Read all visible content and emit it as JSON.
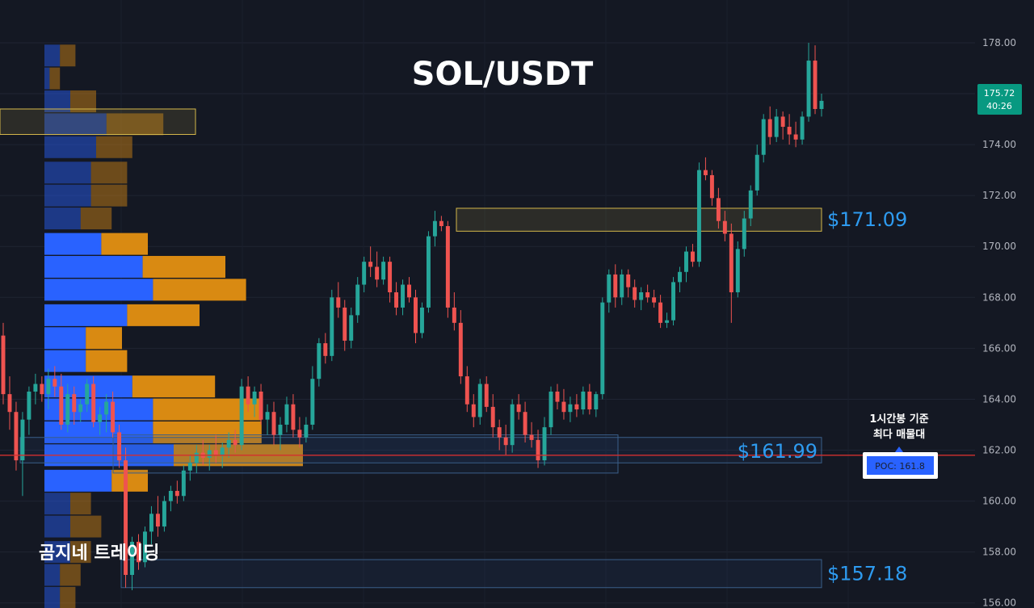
{
  "chart_data": {
    "type": "candlestick",
    "title": "SOL/USDT",
    "y_ticks": [
      "178.00",
      "176.00",
      "174.00",
      "172.00",
      "170.00",
      "168.00",
      "166.00",
      "164.00",
      "162.00",
      "160.00",
      "158.00",
      "156.00"
    ],
    "ylim": [
      155.8,
      179.3
    ],
    "grid": true,
    "current_price": "175.72",
    "countdown": "40:26",
    "poc": {
      "label": "POC: 161.8",
      "value": 161.8
    },
    "levels": [
      {
        "label": "$171.09",
        "value": 171.09,
        "zone": [
          170.6,
          171.5
        ],
        "color": "#d4b84a"
      },
      {
        "label": "$161.99",
        "value": 161.99,
        "zone": [
          161.5,
          162.5
        ],
        "color": "#3a5f8a"
      },
      {
        "label": "$157.18",
        "value": 157.18,
        "zone": [
          156.6,
          157.7
        ],
        "color": "#3a5f8a"
      }
    ],
    "annotation": [
      "1시간봉 기준",
      "최다 매물대"
    ],
    "watermark": "곰지네 트레이딩",
    "colors": {
      "up": "#26a69a",
      "down": "#ef5350",
      "poc_line": "#d32f2f",
      "vol_up": "#2962ff",
      "vol_down": "#d98a12"
    },
    "volume_profile": [
      {
        "price": 177.5,
        "up": 0.6,
        "down": 0.6
      },
      {
        "price": 176.6,
        "up": 0.2,
        "down": 0.4
      },
      {
        "price": 175.7,
        "up": 1.0,
        "down": 1.0
      },
      {
        "price": 174.8,
        "up": 2.4,
        "down": 2.2
      },
      {
        "price": 173.9,
        "up": 2.0,
        "down": 1.4
      },
      {
        "price": 172.9,
        "up": 1.8,
        "down": 1.4
      },
      {
        "price": 172.0,
        "up": 1.8,
        "down": 1.4
      },
      {
        "price": 171.1,
        "up": 1.4,
        "down": 1.2
      },
      {
        "price": 170.1,
        "up": 2.2,
        "down": 1.8
      },
      {
        "price": 169.2,
        "up": 3.8,
        "down": 3.2
      },
      {
        "price": 168.3,
        "up": 4.2,
        "down": 3.6
      },
      {
        "price": 167.3,
        "up": 3.2,
        "down": 2.8
      },
      {
        "price": 166.4,
        "up": 1.6,
        "down": 1.4
      },
      {
        "price": 165.5,
        "up": 1.6,
        "down": 1.6
      },
      {
        "price": 164.5,
        "up": 3.4,
        "down": 3.2
      },
      {
        "price": 163.6,
        "up": 4.2,
        "down": 4.2
      },
      {
        "price": 162.7,
        "up": 4.2,
        "down": 4.2
      },
      {
        "price": 161.8,
        "up": 5.0,
        "down": 5.0
      },
      {
        "price": 160.8,
        "up": 2.6,
        "down": 1.4
      },
      {
        "price": 159.9,
        "up": 1.0,
        "down": 0.8
      },
      {
        "price": 159.0,
        "up": 1.0,
        "down": 1.2
      },
      {
        "price": 158.0,
        "up": 1.0,
        "down": 0.8
      },
      {
        "price": 157.1,
        "up": 0.6,
        "down": 0.8
      },
      {
        "price": 156.2,
        "up": 0.6,
        "down": 0.6
      }
    ],
    "candles": [
      [
        166.5,
        167.0,
        163.8,
        164.2
      ],
      [
        164.2,
        164.9,
        162.8,
        163.5
      ],
      [
        163.5,
        163.9,
        161.2,
        161.6
      ],
      [
        161.6,
        163.5,
        160.2,
        163.2
      ],
      [
        163.2,
        164.5,
        162.6,
        164.3
      ],
      [
        164.3,
        165.0,
        163.8,
        164.6
      ],
      [
        164.6,
        164.9,
        163.9,
        164.2
      ],
      [
        164.2,
        165.2,
        163.6,
        164.8
      ],
      [
        164.8,
        165.3,
        164.1,
        164.5
      ],
      [
        164.5,
        165.0,
        162.8,
        163.0
      ],
      [
        163.0,
        164.6,
        162.7,
        164.2
      ],
      [
        164.2,
        164.5,
        163.0,
        163.5
      ],
      [
        163.5,
        164.0,
        163.1,
        163.8
      ],
      [
        163.8,
        164.8,
        163.5,
        164.6
      ],
      [
        164.6,
        164.9,
        162.9,
        163.1
      ],
      [
        163.1,
        163.7,
        162.6,
        163.4
      ],
      [
        163.4,
        164.2,
        162.7,
        163.9
      ],
      [
        163.9,
        164.3,
        162.5,
        162.7
      ],
      [
        162.7,
        163.0,
        161.3,
        161.6
      ],
      [
        161.6,
        162.1,
        156.6,
        157.1
      ],
      [
        157.1,
        158.6,
        156.5,
        158.4
      ],
      [
        158.4,
        158.7,
        157.3,
        157.6
      ],
      [
        157.6,
        159.0,
        157.4,
        158.8
      ],
      [
        158.8,
        159.8,
        158.3,
        159.5
      ],
      [
        159.5,
        160.2,
        158.6,
        159.0
      ],
      [
        159.0,
        160.2,
        158.8,
        160.0
      ],
      [
        160.0,
        160.6,
        159.6,
        160.4
      ],
      [
        160.4,
        160.8,
        159.9,
        160.2
      ],
      [
        160.2,
        161.4,
        160.0,
        161.2
      ],
      [
        161.2,
        161.8,
        160.8,
        161.5
      ],
      [
        161.5,
        162.2,
        161.1,
        161.9
      ],
      [
        161.9,
        162.4,
        161.4,
        161.7
      ],
      [
        161.7,
        162.2,
        161.2,
        162.0
      ],
      [
        162.0,
        162.6,
        161.5,
        161.8
      ],
      [
        161.8,
        162.3,
        161.3,
        162.1
      ],
      [
        162.1,
        162.7,
        161.7,
        162.4
      ],
      [
        162.4,
        162.8,
        161.9,
        162.2
      ],
      [
        162.2,
        164.8,
        162.0,
        164.5
      ],
      [
        164.5,
        164.9,
        163.5,
        163.8
      ],
      [
        163.8,
        164.5,
        163.3,
        164.3
      ],
      [
        164.3,
        164.6,
        163.0,
        163.2
      ],
      [
        163.2,
        163.8,
        162.6,
        163.5
      ],
      [
        163.5,
        163.9,
        162.2,
        162.6
      ],
      [
        162.6,
        163.3,
        162.0,
        163.0
      ],
      [
        163.0,
        164.1,
        162.7,
        163.8
      ],
      [
        163.8,
        164.2,
        162.5,
        162.8
      ],
      [
        162.8,
        163.3,
        162.1,
        162.5
      ],
      [
        162.5,
        163.3,
        162.3,
        163.0
      ],
      [
        163.0,
        165.3,
        162.8,
        164.8
      ],
      [
        164.8,
        166.4,
        164.5,
        166.2
      ],
      [
        166.2,
        166.6,
        165.4,
        165.7
      ],
      [
        165.7,
        168.3,
        165.5,
        168.0
      ],
      [
        168.0,
        168.6,
        167.2,
        167.6
      ],
      [
        167.6,
        167.9,
        165.9,
        166.3
      ],
      [
        166.3,
        167.6,
        166.0,
        167.3
      ],
      [
        167.3,
        168.8,
        167.0,
        168.5
      ],
      [
        168.5,
        169.6,
        168.2,
        169.4
      ],
      [
        169.4,
        170.0,
        168.8,
        169.2
      ],
      [
        169.2,
        169.8,
        168.4,
        168.7
      ],
      [
        168.7,
        169.6,
        168.5,
        169.4
      ],
      [
        169.4,
        169.6,
        167.8,
        168.2
      ],
      [
        168.2,
        168.6,
        167.3,
        167.6
      ],
      [
        167.6,
        168.7,
        167.3,
        168.5
      ],
      [
        168.5,
        168.8,
        167.8,
        168.0
      ],
      [
        168.0,
        168.3,
        166.2,
        166.6
      ],
      [
        166.6,
        167.8,
        166.4,
        167.6
      ],
      [
        167.6,
        170.6,
        167.4,
        170.4
      ],
      [
        170.4,
        171.4,
        170.0,
        171.0
      ],
      [
        171.0,
        171.2,
        170.6,
        170.8
      ],
      [
        170.8,
        171.0,
        167.2,
        167.6
      ],
      [
        167.6,
        168.2,
        166.7,
        167.0
      ],
      [
        167.0,
        167.5,
        164.6,
        164.9
      ],
      [
        164.9,
        165.3,
        163.5,
        163.8
      ],
      [
        163.8,
        164.2,
        162.9,
        163.3
      ],
      [
        163.3,
        164.8,
        163.0,
        164.6
      ],
      [
        164.6,
        164.9,
        163.5,
        163.7
      ],
      [
        163.7,
        164.2,
        162.5,
        162.9
      ],
      [
        162.9,
        163.2,
        162.0,
        162.5
      ],
      [
        162.5,
        163.0,
        161.8,
        162.2
      ],
      [
        162.2,
        164.0,
        161.9,
        163.8
      ],
      [
        163.8,
        164.2,
        163.2,
        163.5
      ],
      [
        163.5,
        163.9,
        162.3,
        162.6
      ],
      [
        162.6,
        163.1,
        162.1,
        162.4
      ],
      [
        162.4,
        162.8,
        161.3,
        161.6
      ],
      [
        161.6,
        163.3,
        161.4,
        162.9
      ],
      [
        162.9,
        164.5,
        162.6,
        164.3
      ],
      [
        164.3,
        164.6,
        163.6,
        163.9
      ],
      [
        163.9,
        164.4,
        163.2,
        163.5
      ],
      [
        163.5,
        164.1,
        163.1,
        163.8
      ],
      [
        163.8,
        164.2,
        163.3,
        163.6
      ],
      [
        163.6,
        164.5,
        163.4,
        164.3
      ],
      [
        164.3,
        164.6,
        163.4,
        163.6
      ],
      [
        163.6,
        164.3,
        163.3,
        164.2
      ],
      [
        164.2,
        168.0,
        164.0,
        167.8
      ],
      [
        167.8,
        169.1,
        167.4,
        168.9
      ],
      [
        168.9,
        169.3,
        167.6,
        168.0
      ],
      [
        168.0,
        169.1,
        167.7,
        168.9
      ],
      [
        168.9,
        169.1,
        168.0,
        168.4
      ],
      [
        168.4,
        168.7,
        167.6,
        167.9
      ],
      [
        167.9,
        168.4,
        167.5,
        168.2
      ],
      [
        168.2,
        168.5,
        167.8,
        168.0
      ],
      [
        168.0,
        168.3,
        167.6,
        167.8
      ],
      [
        167.8,
        168.1,
        166.8,
        167.0
      ],
      [
        167.0,
        167.4,
        166.8,
        167.1
      ],
      [
        167.1,
        168.8,
        166.9,
        168.6
      ],
      [
        168.6,
        169.2,
        168.2,
        169.0
      ],
      [
        169.0,
        170.0,
        168.6,
        169.8
      ],
      [
        169.8,
        170.1,
        169.2,
        169.4
      ],
      [
        169.4,
        173.3,
        169.2,
        173.0
      ],
      [
        173.0,
        173.5,
        172.6,
        172.8
      ],
      [
        172.8,
        173.0,
        171.6,
        171.9
      ],
      [
        171.9,
        172.3,
        170.7,
        171.0
      ],
      [
        171.0,
        171.4,
        170.2,
        170.5
      ],
      [
        170.5,
        170.9,
        167.0,
        168.2
      ],
      [
        168.2,
        170.2,
        168.0,
        169.9
      ],
      [
        169.9,
        171.4,
        169.6,
        171.1
      ],
      [
        171.1,
        172.4,
        170.8,
        172.2
      ],
      [
        172.2,
        174.0,
        172.0,
        173.6
      ],
      [
        173.6,
        175.2,
        173.3,
        175.0
      ],
      [
        175.0,
        175.5,
        174.0,
        174.3
      ],
      [
        174.3,
        175.4,
        174.1,
        175.1
      ],
      [
        175.1,
        175.3,
        174.2,
        174.7
      ],
      [
        174.7,
        175.2,
        174.0,
        174.4
      ],
      [
        174.4,
        174.9,
        173.9,
        174.2
      ],
      [
        174.2,
        175.3,
        174.0,
        175.1
      ],
      [
        175.1,
        178.0,
        174.9,
        177.3
      ],
      [
        177.3,
        177.9,
        175.2,
        175.4
      ],
      [
        175.4,
        176.0,
        175.1,
        175.72
      ]
    ]
  }
}
